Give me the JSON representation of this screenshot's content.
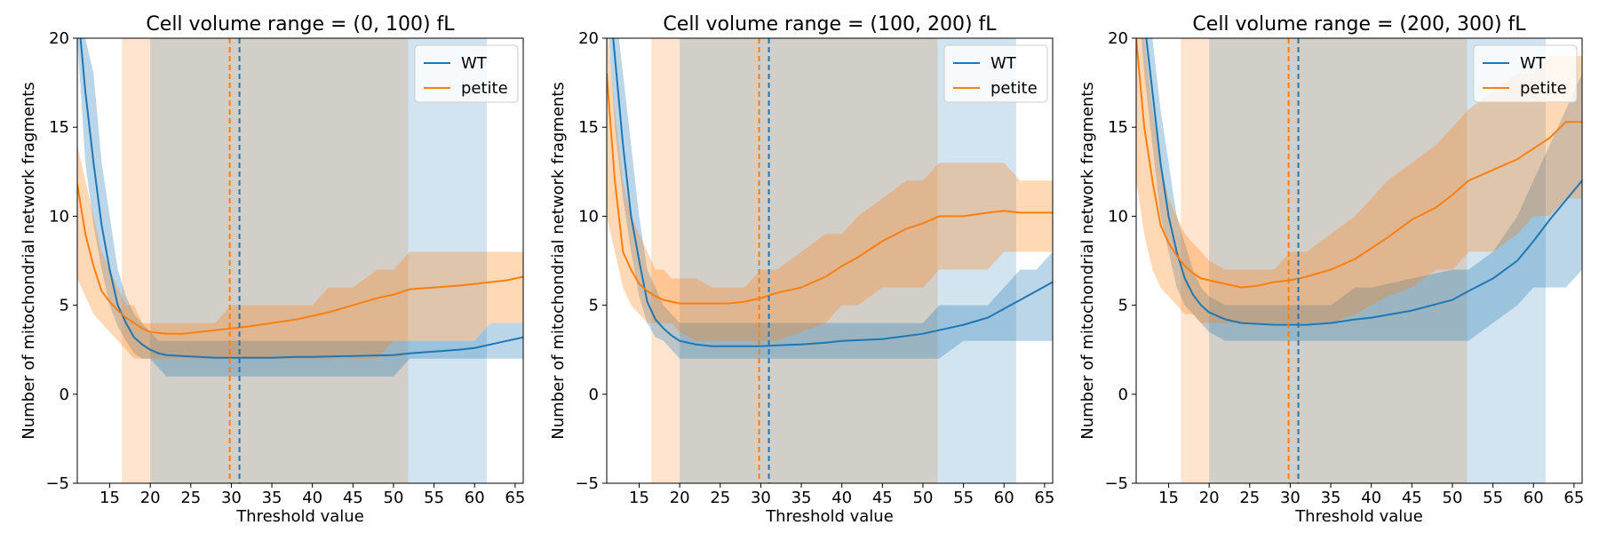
{
  "colors": {
    "wt": "#1f77b4",
    "petite": "#ff7f0e",
    "wt_band": "#1f77b4",
    "petite_band": "#ff7f0e"
  },
  "chart_data": [
    {
      "type": "line",
      "title": "Cell volume range = (0, 100) fL",
      "xlabel": "Threshold value",
      "ylabel": "Number of mitochondrial network fragments",
      "xlim": [
        11,
        66
      ],
      "ylim": [
        -5,
        20
      ],
      "xticks": [
        15,
        20,
        25,
        30,
        35,
        40,
        45,
        50,
        55,
        60,
        65
      ],
      "yticks": [
        -5,
        0,
        5,
        10,
        15,
        20
      ],
      "legend_position": "top-right",
      "vertical_lines": [
        {
          "series": "petite",
          "x": 29.8,
          "style": "dashed"
        },
        {
          "series": "WT",
          "x": 31.0,
          "style": "dashed"
        }
      ],
      "vertical_spans": [
        {
          "series": "petite",
          "x0": 16.5,
          "x1": 51.8
        },
        {
          "series": "WT",
          "x0": 20.0,
          "x1": 61.5
        }
      ],
      "series": [
        {
          "name": "WT",
          "color": "#1f77b4",
          "x": [
            11,
            12,
            13,
            14,
            15,
            16,
            17,
            18,
            19,
            20,
            21,
            22,
            24,
            26,
            28,
            30,
            32,
            35,
            38,
            40,
            45,
            50,
            52,
            55,
            58,
            60,
            62,
            64,
            66
          ],
          "y": [
            22,
            17,
            13,
            9.5,
            7,
            5,
            4,
            3.2,
            2.8,
            2.5,
            2.3,
            2.2,
            2.15,
            2.1,
            2.05,
            2.05,
            2.05,
            2.05,
            2.1,
            2.1,
            2.15,
            2.2,
            2.3,
            2.4,
            2.5,
            2.6,
            2.8,
            3.0,
            3.2
          ],
          "lower": [
            20,
            13,
            9.5,
            7,
            5,
            3.8,
            3,
            2.3,
            2,
            2,
            1.5,
            1,
            1,
            1,
            1,
            1,
            1,
            1,
            1,
            1,
            1,
            1,
            2,
            2,
            2,
            2,
            2,
            2,
            2
          ],
          "upper": [
            23,
            20,
            18,
            13,
            10,
            7,
            5.5,
            4.5,
            4,
            3.5,
            3,
            3,
            3,
            3,
            3,
            3,
            3,
            3,
            3,
            3,
            3,
            3,
            3,
            3,
            3,
            3,
            4,
            4,
            4
          ]
        },
        {
          "name": "petite",
          "color": "#ff7f0e",
          "x": [
            11,
            12,
            13,
            14,
            15,
            16,
            17,
            18,
            19,
            20,
            22,
            24,
            26,
            28,
            30,
            32,
            35,
            38,
            40,
            42,
            45,
            48,
            50,
            52,
            55,
            58,
            60,
            62,
            64,
            66
          ],
          "y": [
            11.8,
            9,
            7.2,
            5.8,
            5.2,
            4.7,
            4.3,
            4,
            3.7,
            3.5,
            3.4,
            3.4,
            3.5,
            3.6,
            3.7,
            3.8,
            4.0,
            4.2,
            4.4,
            4.6,
            5.0,
            5.4,
            5.6,
            5.9,
            6.0,
            6.1,
            6.2,
            6.3,
            6.4,
            6.6
          ],
          "lower": [
            6.5,
            5.5,
            4.5,
            4,
            3.5,
            3,
            2.5,
            2,
            2,
            2,
            2,
            2,
            2,
            2,
            2,
            2,
            2,
            2,
            2,
            2,
            2,
            2,
            3,
            3,
            3,
            3,
            3,
            4,
            4,
            4
          ],
          "upper": [
            14,
            12,
            10,
            8,
            7,
            6,
            5,
            5,
            4,
            4,
            4,
            4,
            4,
            4,
            5,
            5,
            5,
            5,
            5,
            6,
            6,
            7,
            7,
            8,
            8,
            8,
            8,
            8,
            8,
            8
          ]
        }
      ]
    },
    {
      "type": "line",
      "title": "Cell volume range = (100, 200) fL",
      "xlabel": "Threshold value",
      "ylabel": "Number of mitochondrial network fragments",
      "xlim": [
        11,
        66
      ],
      "ylim": [
        -5,
        20
      ],
      "xticks": [
        15,
        20,
        25,
        30,
        35,
        40,
        45,
        50,
        55,
        60,
        65
      ],
      "yticks": [
        -5,
        0,
        5,
        10,
        15,
        20
      ],
      "legend_position": "top-right",
      "vertical_lines": [
        {
          "series": "petite",
          "x": 29.8,
          "style": "dashed"
        },
        {
          "series": "WT",
          "x": 31.0,
          "style": "dashed"
        }
      ],
      "vertical_spans": [
        {
          "series": "petite",
          "x0": 16.5,
          "x1": 51.8
        },
        {
          "series": "WT",
          "x0": 20.0,
          "x1": 61.5
        }
      ],
      "series": [
        {
          "name": "WT",
          "color": "#1f77b4",
          "x": [
            11,
            12,
            13,
            14,
            15,
            16,
            17,
            18,
            19,
            20,
            22,
            24,
            26,
            28,
            30,
            32,
            35,
            38,
            40,
            45,
            50,
            52,
            55,
            58,
            60,
            62,
            64,
            66
          ],
          "y": [
            24,
            19,
            14,
            10,
            7.5,
            5.2,
            4.2,
            3.7,
            3.3,
            3.0,
            2.8,
            2.7,
            2.7,
            2.7,
            2.7,
            2.75,
            2.8,
            2.9,
            3.0,
            3.1,
            3.4,
            3.6,
            3.9,
            4.3,
            4.8,
            5.3,
            5.8,
            6.3
          ],
          "lower": [
            22,
            15,
            11,
            8,
            5.5,
            4,
            3.2,
            3,
            2.5,
            2,
            2,
            2,
            2,
            2,
            2,
            2,
            2,
            2,
            2,
            2,
            2,
            2,
            3,
            3,
            3,
            3,
            3,
            3
          ],
          "upper": [
            25,
            22,
            18,
            14,
            10,
            7,
            6,
            5,
            4.5,
            4,
            4,
            4,
            4,
            4,
            4,
            4,
            4,
            4,
            4,
            4,
            4,
            5,
            5,
            5,
            6,
            7,
            7,
            8
          ]
        },
        {
          "name": "petite",
          "color": "#ff7f0e",
          "x": [
            11,
            12,
            13,
            14,
            15,
            16,
            17,
            18,
            19,
            20,
            22,
            24,
            26,
            28,
            30,
            32,
            35,
            38,
            40,
            42,
            45,
            48,
            50,
            52,
            55,
            58,
            60,
            62,
            64,
            66
          ],
          "y": [
            18,
            12,
            8,
            7,
            6.2,
            5.8,
            5.5,
            5.3,
            5.2,
            5.1,
            5.1,
            5.1,
            5.1,
            5.2,
            5.4,
            5.7,
            6.0,
            6.6,
            7.2,
            7.7,
            8.6,
            9.3,
            9.6,
            10.0,
            10.0,
            10.2,
            10.3,
            10.2,
            10.2,
            10.2
          ],
          "lower": [
            10,
            8,
            6,
            5,
            4.5,
            4,
            4,
            4,
            4,
            3.5,
            3,
            3,
            3,
            3,
            3,
            3,
            3.5,
            4,
            5,
            5,
            6,
            6,
            6,
            7,
            7,
            7,
            8,
            8,
            8,
            8
          ],
          "upper": [
            21,
            16,
            12,
            10,
            9,
            8,
            7,
            7,
            6.5,
            6.5,
            6.5,
            6,
            6,
            6,
            7,
            7,
            8,
            9,
            9,
            10,
            11,
            12,
            12,
            13,
            13,
            13,
            13,
            12,
            12,
            12
          ]
        }
      ]
    },
    {
      "type": "line",
      "title": "Cell volume range = (200, 300) fL",
      "xlabel": "Threshold value",
      "ylabel": "Number of mitochondrial network fragments",
      "xlim": [
        11,
        66
      ],
      "ylim": [
        -5,
        20
      ],
      "xticks": [
        15,
        20,
        25,
        30,
        35,
        40,
        45,
        50,
        55,
        60,
        65
      ],
      "yticks": [
        -5,
        0,
        5,
        10,
        15,
        20
      ],
      "legend_position": "top-right",
      "vertical_lines": [
        {
          "series": "petite",
          "x": 29.8,
          "style": "dashed"
        },
        {
          "series": "WT",
          "x": 31.0,
          "style": "dashed"
        }
      ],
      "vertical_spans": [
        {
          "series": "petite",
          "x0": 16.5,
          "x1": 51.8
        },
        {
          "series": "WT",
          "x0": 20.0,
          "x1": 61.5
        }
      ],
      "series": [
        {
          "name": "WT",
          "color": "#1f77b4",
          "x": [
            11,
            12,
            13,
            14,
            15,
            16,
            17,
            18,
            19,
            20,
            22,
            24,
            26,
            28,
            30,
            32,
            35,
            38,
            40,
            45,
            50,
            52,
            55,
            58,
            60,
            62,
            64,
            66
          ],
          "y": [
            26,
            21,
            17,
            13,
            10,
            8,
            6.5,
            5.6,
            5.0,
            4.6,
            4.2,
            4.0,
            3.95,
            3.9,
            3.9,
            3.9,
            4.0,
            4.2,
            4.3,
            4.7,
            5.3,
            5.8,
            6.5,
            7.5,
            8.6,
            9.8,
            10.9,
            12.0
          ],
          "lower": [
            24,
            18,
            14,
            10,
            8,
            6,
            5,
            4.5,
            4,
            3.5,
            3,
            3,
            3,
            3,
            3,
            3,
            3,
            3,
            3,
            3,
            3,
            3,
            4,
            5,
            6,
            6,
            6,
            7
          ],
          "upper": [
            27,
            24,
            20,
            16,
            13,
            10,
            8.5,
            7,
            6,
            5.5,
            5,
            5,
            5,
            5,
            5,
            5,
            5,
            6,
            6,
            6.5,
            7,
            7,
            8,
            10,
            12,
            14,
            16,
            18
          ]
        },
        {
          "name": "petite",
          "color": "#ff7f0e",
          "x": [
            11,
            12,
            13,
            14,
            15,
            16,
            17,
            18,
            19,
            20,
            22,
            24,
            26,
            28,
            30,
            32,
            35,
            38,
            40,
            42,
            45,
            48,
            50,
            52,
            55,
            58,
            60,
            62,
            64,
            66
          ],
          "y": [
            20,
            15,
            12,
            9.5,
            8.5,
            7.8,
            7.2,
            6.8,
            6.5,
            6.4,
            6.2,
            6.0,
            6.1,
            6.3,
            6.4,
            6.6,
            7.0,
            7.6,
            8.2,
            8.8,
            9.8,
            10.5,
            11.2,
            12.0,
            12.6,
            13.2,
            13.8,
            14.4,
            15.3,
            15.3
          ],
          "lower": [
            12,
            9,
            7,
            6,
            5.5,
            5,
            4.5,
            4.5,
            4,
            4,
            4,
            4,
            4,
            4,
            4,
            4,
            4,
            4.5,
            5,
            5.5,
            6,
            7,
            7,
            8,
            8,
            9,
            10,
            10,
            11,
            11
          ],
          "upper": [
            22,
            20,
            16,
            13,
            11,
            10,
            9,
            8.5,
            8,
            7.5,
            7,
            7,
            7,
            7,
            8,
            8,
            9,
            10,
            11,
            12,
            13,
            14,
            15,
            16,
            17,
            18,
            18,
            19,
            19,
            19
          ]
        }
      ]
    }
  ]
}
